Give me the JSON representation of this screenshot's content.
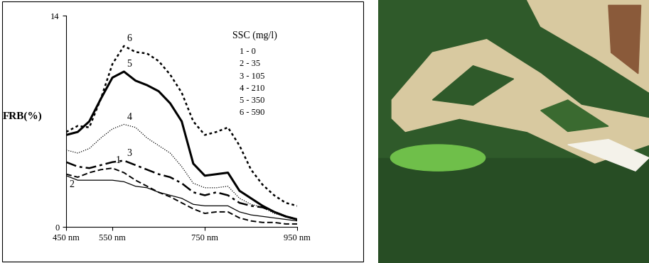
{
  "chart_data": {
    "type": "line",
    "y_label": "FRB(%)",
    "legend_title": "SSC (mg/l)",
    "x": [
      450,
      475,
      500,
      525,
      550,
      575,
      600,
      625,
      650,
      675,
      700,
      725,
      750,
      775,
      800,
      825,
      850,
      875,
      900,
      925,
      950
    ],
    "xlim": [
      450,
      950
    ],
    "xticks": [
      {
        "value": 450,
        "label": "450 nm"
      },
      {
        "value": 550,
        "label": "550 nm"
      },
      {
        "value": 750,
        "label": "750 nm"
      },
      {
        "value": 950,
        "label": "950 nm"
      }
    ],
    "ylim": [
      0,
      14
    ],
    "yticks": [
      0,
      14
    ],
    "grid": false,
    "series": [
      {
        "name": "1",
        "label": "1 - 0",
        "color": "#000000",
        "line_style": "dashed",
        "values": [
          3.5,
          3.3,
          3.6,
          3.8,
          3.9,
          3.6,
          3.1,
          2.7,
          2.3,
          2.0,
          1.6,
          1.2,
          0.9,
          1.0,
          1.0,
          0.6,
          0.4,
          0.3,
          0.3,
          0.2,
          0.2
        ]
      },
      {
        "name": "2",
        "label": "2 - 35",
        "color": "#000000",
        "line_style": "solid",
        "values": [
          3.4,
          3.1,
          3.1,
          3.1,
          3.1,
          3.0,
          2.7,
          2.6,
          2.3,
          2.1,
          1.9,
          1.5,
          1.4,
          1.4,
          1.4,
          1.0,
          0.8,
          0.7,
          0.6,
          0.5,
          0.4
        ]
      },
      {
        "name": "3",
        "label": "3 - 105",
        "color": "#000000",
        "line_style": "dashdot",
        "values": [
          4.3,
          4.0,
          3.9,
          4.1,
          4.3,
          4.4,
          4.1,
          3.8,
          3.5,
          3.3,
          2.9,
          2.3,
          2.1,
          2.3,
          2.1,
          1.6,
          1.4,
          1.3,
          1.0,
          0.7,
          0.5
        ]
      },
      {
        "name": "4",
        "label": "4 - 210",
        "color": "#000000",
        "line_style": "dotted",
        "values": [
          5.1,
          4.9,
          5.2,
          5.9,
          6.5,
          6.8,
          6.6,
          5.9,
          5.4,
          4.9,
          4.0,
          2.9,
          2.6,
          2.6,
          2.7,
          1.9,
          1.5,
          1.3,
          0.9,
          0.7,
          0.5
        ]
      },
      {
        "name": "5",
        "label": "5 - 350",
        "color": "#000000",
        "line_style": "thick",
        "values": [
          6.1,
          6.3,
          7.0,
          8.5,
          9.9,
          10.3,
          9.7,
          9.4,
          9.0,
          8.2,
          7.0,
          4.2,
          3.4,
          3.5,
          3.6,
          2.4,
          1.9,
          1.4,
          1.0,
          0.7,
          0.5
        ]
      },
      {
        "name": "6",
        "label": "6 - 590",
        "color": "#000000",
        "line_style": "densely_dotted",
        "values": [
          6.3,
          6.7,
          6.6,
          8.5,
          10.8,
          12.0,
          11.6,
          11.5,
          11.0,
          10.1,
          8.9,
          7.0,
          6.1,
          6.3,
          6.6,
          5.4,
          3.8,
          2.8,
          2.1,
          1.6,
          1.4
        ]
      }
    ]
  }
}
